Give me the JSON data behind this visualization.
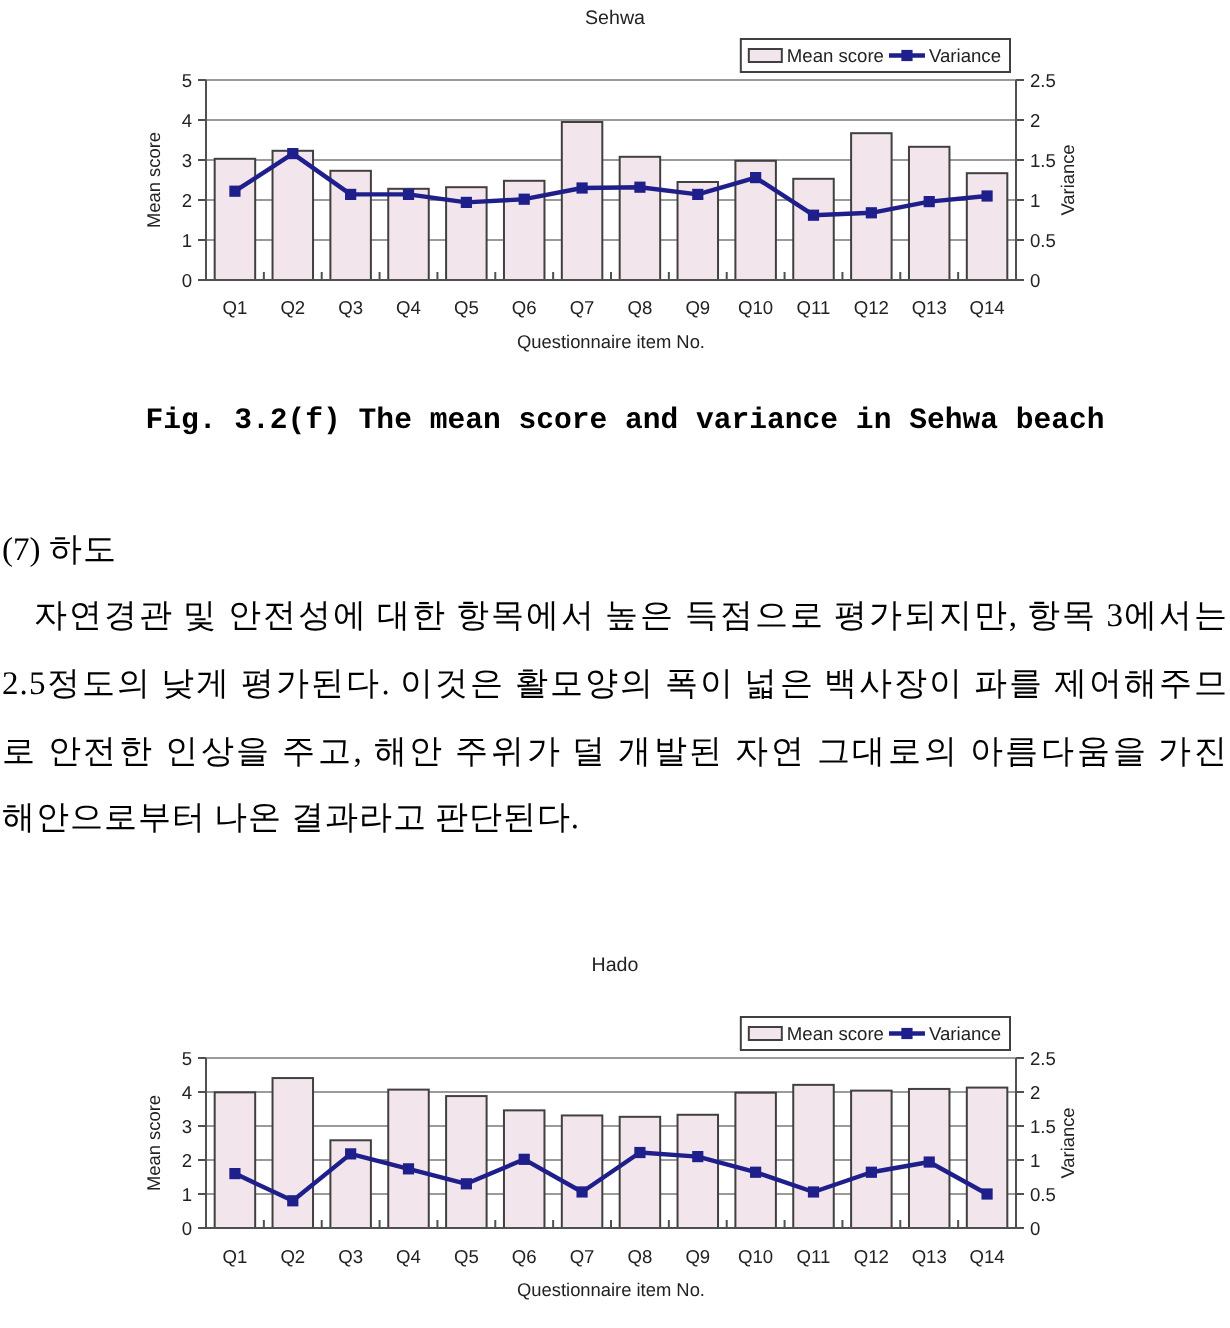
{
  "chart_data": [
    {
      "type": "bar",
      "title": "Sehwa",
      "xlabel": "Questionnaire item No.",
      "ylabel": "Mean score",
      "y2label": "Variance",
      "categories": [
        "Q1",
        "Q2",
        "Q3",
        "Q4",
        "Q5",
        "Q6",
        "Q7",
        "Q8",
        "Q9",
        "Q10",
        "Q11",
        "Q12",
        "Q13",
        "Q14"
      ],
      "series": [
        {
          "name": "Mean score",
          "color": "#f3e5ec",
          "values": [
            3.03,
            3.23,
            2.73,
            2.28,
            2.32,
            2.48,
            3.95,
            3.08,
            2.45,
            2.98,
            2.53,
            3.67,
            3.33,
            2.67
          ]
        },
        {
          "name": "Variance",
          "type": "line",
          "axis": "y2",
          "color": "#1f1f8c",
          "marker": "square",
          "values": [
            1.11,
            1.58,
            1.07,
            1.07,
            0.97,
            1.01,
            1.15,
            1.16,
            1.07,
            1.28,
            0.81,
            0.84,
            0.98,
            1.05
          ]
        }
      ],
      "ylim": [
        0,
        5
      ],
      "yticks": [
        0,
        1,
        2,
        3,
        4,
        5
      ],
      "y2lim": [
        0,
        2.5
      ],
      "y2ticks": [
        0,
        0.5,
        1,
        1.5,
        2,
        2.5
      ],
      "grid": "y",
      "legend": "top right",
      "annotations": [
        "Fig. 3.2(f) The mean score and variance in Sehwa beach"
      ]
    },
    {
      "type": "bar",
      "title": "Hado",
      "xlabel": "Questionnaire item No.",
      "ylabel": "Mean score",
      "y2label": "Variance",
      "categories": [
        "Q1",
        "Q2",
        "Q3",
        "Q4",
        "Q5",
        "Q6",
        "Q7",
        "Q8",
        "Q9",
        "Q10",
        "Q11",
        "Q12",
        "Q13",
        "Q14"
      ],
      "series": [
        {
          "name": "Mean score",
          "color": "#f3e5ec",
          "values": [
            3.99,
            4.41,
            2.58,
            4.07,
            3.88,
            3.46,
            3.31,
            3.27,
            3.33,
            3.98,
            4.21,
            4.04,
            4.09,
            4.13
          ]
        },
        {
          "name": "Variance",
          "type": "line",
          "axis": "y2",
          "color": "#1f1f8c",
          "marker": "square",
          "values": [
            0.8,
            0.4,
            1.09,
            0.87,
            0.65,
            1.01,
            0.53,
            1.11,
            1.05,
            0.82,
            0.53,
            0.82,
            0.97,
            0.5
          ]
        }
      ],
      "ylim": [
        0,
        5
      ],
      "yticks": [
        0,
        1,
        2,
        3,
        4,
        5
      ],
      "y2lim": [
        0,
        2.5
      ],
      "y2ticks": [
        0,
        0.5,
        1,
        1.5,
        2,
        2.5
      ],
      "grid": "y",
      "legend": "top right",
      "annotations": [
        "(7) 하도",
        "자연경관 및 안전성에 대한 항목에서 높은 득점으로 평가되지만, 항목 3에서는",
        "2.5정도의 낮게 평가된다. 이것은 활모양의 폭이 넓은 백사장이 파를 제어해주므",
        "로 안전한 인상을 주고, 해안 주위가 덜 개발된 자연 그대로의 아름다움을 가진",
        "해안으로부터 나온 결과라고 판단된다."
      ]
    }
  ]
}
